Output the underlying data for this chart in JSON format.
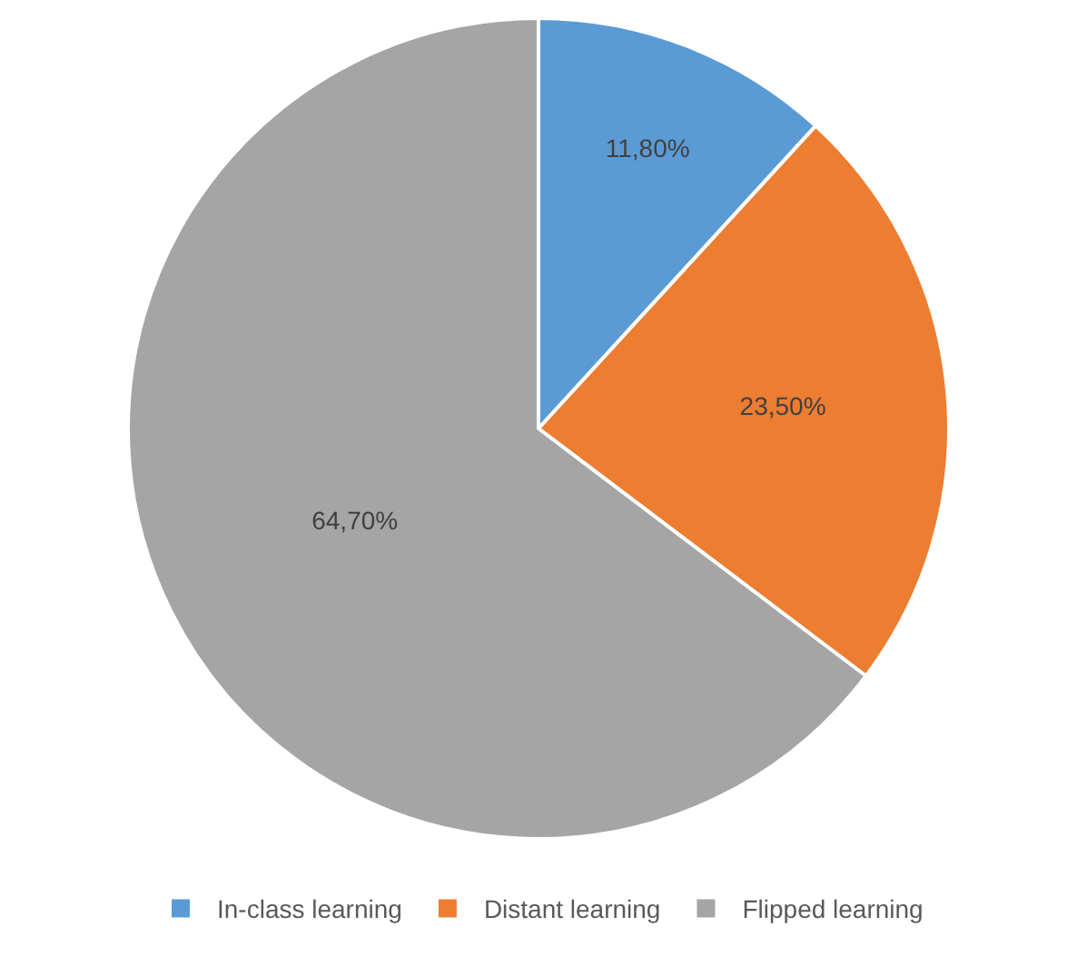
{
  "chart_data": {
    "type": "pie",
    "categories": [
      "In-class learning",
      "Distant learning",
      "Flipped learning"
    ],
    "values": [
      11.8,
      23.5,
      64.7
    ],
    "colors": [
      "#5b9bd5",
      "#ed7d31",
      "#a5a5a5"
    ],
    "value_labels": [
      "11,80%",
      "23,50%",
      "64,70%"
    ],
    "legend": "bottom"
  }
}
